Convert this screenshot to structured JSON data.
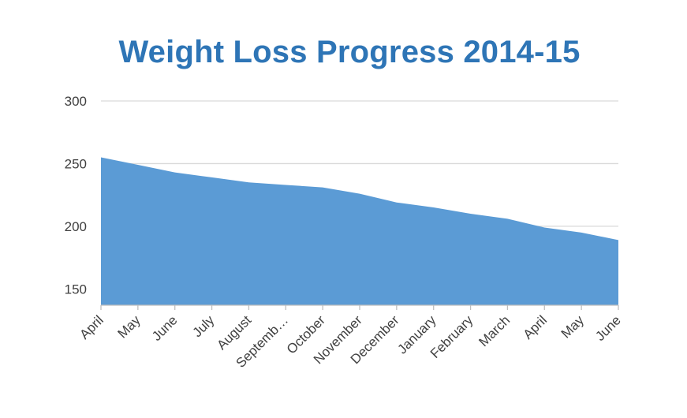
{
  "chart_data": {
    "type": "area",
    "title": "Weight Loss Progress 2014-15",
    "xlabel": "",
    "ylabel": "",
    "categories": [
      "April",
      "May",
      "June",
      "July",
      "August",
      "Septemb…",
      "October",
      "November",
      "December",
      "January",
      "February",
      "March",
      "April",
      "May",
      "June"
    ],
    "series": [
      {
        "values": [
          255,
          249,
          243,
          239,
          235,
          233,
          231,
          226,
          219,
          215,
          210,
          206,
          199,
          195,
          189
        ]
      }
    ],
    "ylim": [
      137,
      300
    ],
    "yticks": [
      150,
      200,
      250,
      300
    ],
    "grid": true,
    "legend": "none"
  },
  "colors": {
    "title": "#2E75B6",
    "area_fill": "#5B9BD5",
    "gridline": "#D9D9D9",
    "axis": "#BFBFBF",
    "text": "#404040"
  }
}
